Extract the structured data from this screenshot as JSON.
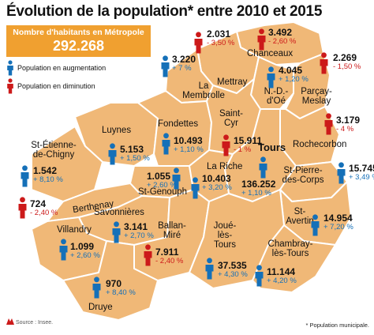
{
  "title": "Évolution de la population* entre 2010 et 2015",
  "metro": {
    "label": "Nombre d'habitants en Métropole",
    "value": "292.268"
  },
  "legend": {
    "up": "Population en augmentation",
    "down": "Population en diminution"
  },
  "colors": {
    "map_fill": "#f0b877",
    "map_border": "#ffffff",
    "up": "#1570b8",
    "down": "#cc1a1a",
    "banner": "#f0a030"
  },
  "communes": [
    {
      "name": "Chanceaux",
      "value": "3.492",
      "change": "- 2,60 %",
      "trend": "down"
    },
    {
      "name": "Mettray",
      "value": "2.031",
      "change": "- 3,50 %",
      "trend": "down"
    },
    {
      "name": "La Membrolle",
      "value": "3.220",
      "change": "+ 7 %",
      "trend": "up"
    },
    {
      "name": "N.-D.-d'Oé",
      "value": "4.045",
      "change": "+ 1,20 %",
      "trend": "up"
    },
    {
      "name": "Parçay-Meslay",
      "value": "2.269",
      "change": "- 1,50 %",
      "trend": "down"
    },
    {
      "name": "Rochecorbon",
      "value": "3.179",
      "change": "- 4 %",
      "trend": "down"
    },
    {
      "name": "Luynes",
      "value": "5.153",
      "change": "+ 1,50 %",
      "trend": "up"
    },
    {
      "name": "Fondettes",
      "value": "10.493",
      "change": "+ 1,10 %",
      "trend": "up"
    },
    {
      "name": "Saint-Cyr",
      "value": "15.911",
      "change": "- 1 %",
      "trend": "down"
    },
    {
      "name": "St-Étienne-de-Chigny",
      "value": "1.542",
      "change": "+ 8,10 %",
      "trend": "up"
    },
    {
      "name": "Tours",
      "value": "136.252",
      "change": "+ 1,10 %",
      "trend": "up"
    },
    {
      "name": "St-Genouph",
      "value": "1.055",
      "change": "+ 2,60 %",
      "trend": "up"
    },
    {
      "name": "La Riche",
      "value": "10.403",
      "change": "+ 3,20 %",
      "trend": "up"
    },
    {
      "name": "St-Pierre-des-Corps",
      "value": "15.745",
      "change": "+ 3,49 %",
      "trend": "up"
    },
    {
      "name": "Berthenay",
      "value": "724",
      "change": "- 2,40 %",
      "trend": "down"
    },
    {
      "name": "Savonnières",
      "value": "3.141",
      "change": "+ 2,70 %",
      "trend": "up"
    },
    {
      "name": "Villandry",
      "value": "1.099",
      "change": "+ 2,60 %",
      "trend": "up"
    },
    {
      "name": "St-Avertin",
      "value": "14.954",
      "change": "+ 7,20 %",
      "trend": "up"
    },
    {
      "name": "Ballan-Miré",
      "value": "7.911",
      "change": "- 2,40 %",
      "trend": "down"
    },
    {
      "name": "Joué-lès-Tours",
      "value": "37.535",
      "change": "+ 4,30 %",
      "trend": "up"
    },
    {
      "name": "Chambray-lès-Tours",
      "value": "11.144",
      "change": "+ 4,20 %",
      "trend": "up"
    },
    {
      "name": "Druye",
      "value": "970",
      "change": "+ 8,40 %",
      "trend": "up"
    }
  ],
  "source": "Source : Insee.",
  "footnote": "* Population municipale."
}
